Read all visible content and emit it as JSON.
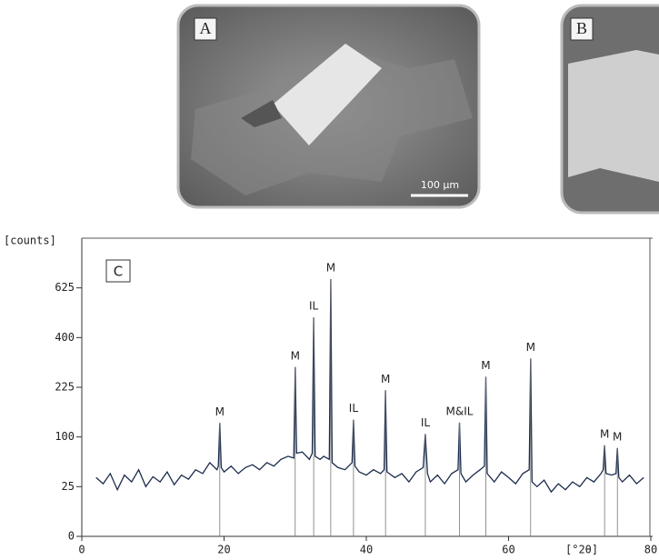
{
  "panels": [
    {
      "label": "A",
      "scale_bar": "100 µm"
    },
    {
      "label": "B"
    }
  ],
  "chart_data": {
    "type": "line",
    "panel_label": "C",
    "ylabel": "[counts]",
    "xlabel": "[°2θ]",
    "yscale": "sqrt",
    "xlim": [
      0,
      80
    ],
    "ylim": [
      0,
      900
    ],
    "xticks": [
      0,
      20,
      40,
      60,
      80
    ],
    "yticks": [
      0,
      25,
      100,
      225,
      400,
      625
    ],
    "series": [
      {
        "color": "#1c2c4c",
        "x": [
          2,
          3,
          4,
          5,
          6,
          7,
          8,
          9,
          10,
          11,
          12,
          13,
          14,
          15,
          16,
          17,
          18,
          19,
          19.2,
          19.4,
          19.6,
          20,
          21,
          22,
          23,
          24,
          25,
          26,
          27,
          28,
          29,
          29.8,
          30,
          30.2,
          31,
          32,
          32.4,
          32.6,
          32.8,
          33.5,
          34,
          34.8,
          35,
          35.2,
          36,
          37,
          38,
          38.2,
          38.4,
          39,
          40,
          41,
          42,
          42.5,
          42.7,
          42.9,
          44,
          45,
          46,
          47,
          48,
          48.3,
          48.6,
          49,
          50,
          51,
          52,
          52.9,
          53.1,
          53.3,
          54,
          55,
          56,
          56.6,
          56.8,
          57,
          58,
          59,
          60,
          61,
          62,
          62.9,
          63.1,
          63.3,
          64,
          65,
          66,
          67,
          68,
          69,
          70,
          71,
          72,
          73,
          73.3,
          73.5,
          73.7,
          74.5,
          75.1,
          75.3,
          75.5,
          76,
          77,
          78,
          79
        ],
        "values": [
          35,
          28,
          40,
          22,
          38,
          30,
          45,
          25,
          36,
          30,
          42,
          27,
          38,
          33,
          45,
          40,
          55,
          45,
          50,
          130,
          48,
          42,
          50,
          40,
          48,
          52,
          45,
          55,
          50,
          60,
          65,
          62,
          290,
          70,
          72,
          60,
          70,
          485,
          65,
          60,
          65,
          60,
          670,
          55,
          48,
          45,
          55,
          138,
          50,
          42,
          38,
          45,
          40,
          45,
          216,
          42,
          35,
          40,
          30,
          42,
          48,
          106,
          40,
          30,
          38,
          28,
          40,
          45,
          131,
          40,
          30,
          38,
          45,
          50,
          258,
          40,
          30,
          42,
          35,
          28,
          40,
          45,
          320,
          30,
          25,
          32,
          20,
          28,
          22,
          30,
          25,
          35,
          30,
          40,
          45,
          84,
          40,
          38,
          40,
          79,
          35,
          30,
          38,
          28,
          35
        ]
      }
    ],
    "annotations": [
      {
        "text": "M",
        "x": 19.4
      },
      {
        "text": "M",
        "x": 30
      },
      {
        "text": "IL",
        "x": 32.6
      },
      {
        "text": "M",
        "x": 35
      },
      {
        "text": "IL",
        "x": 38.2
      },
      {
        "text": "M",
        "x": 42.7
      },
      {
        "text": "IL",
        "x": 48.3
      },
      {
        "text": "M&IL",
        "x": 53.1
      },
      {
        "text": "M",
        "x": 56.8
      },
      {
        "text": "M",
        "x": 63.1
      },
      {
        "text": "M",
        "x": 73.5
      },
      {
        "text": "M",
        "x": 75.3
      }
    ]
  }
}
